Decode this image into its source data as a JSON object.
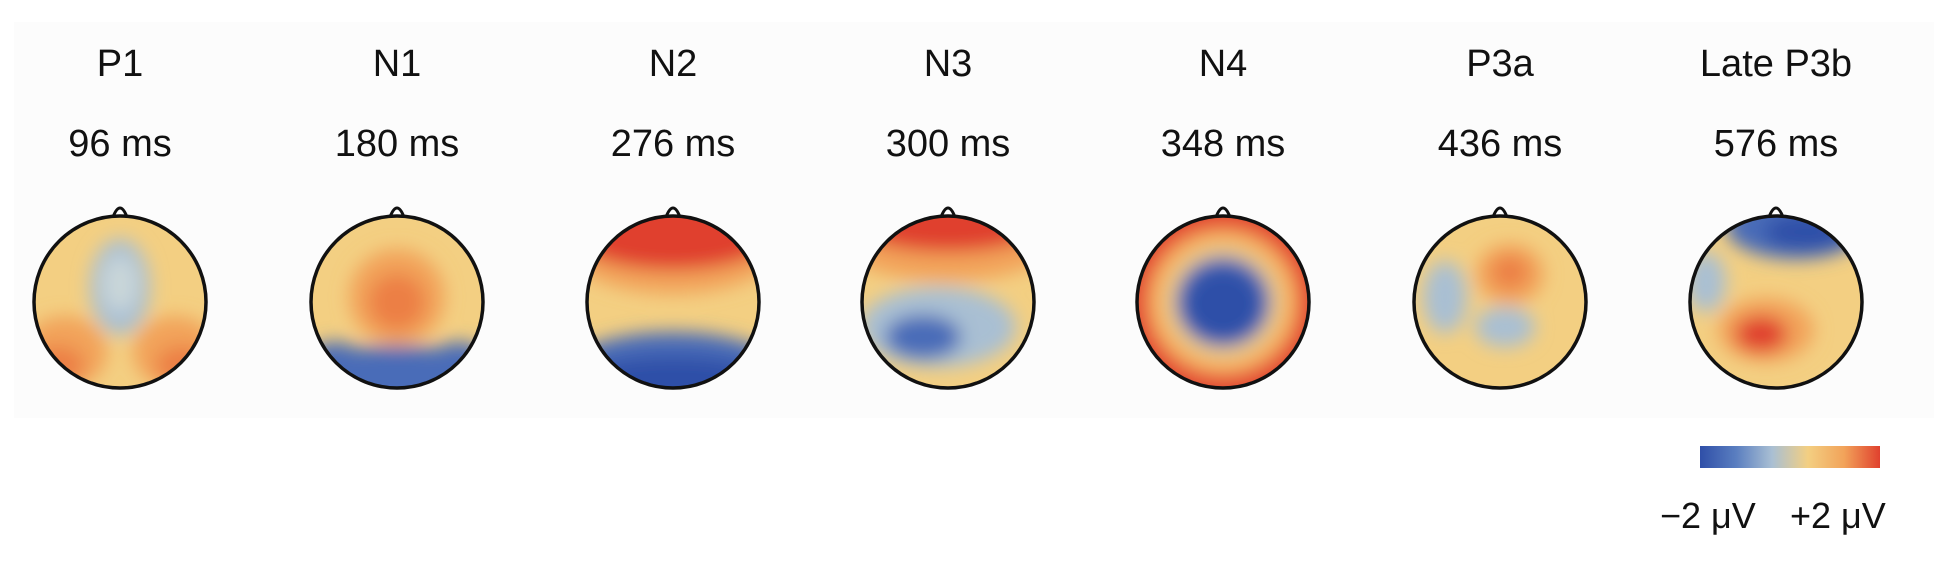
{
  "figure": {
    "components": [
      {
        "id": "p1",
        "name": "P1",
        "latency": "96 ms",
        "pattern": "p1"
      },
      {
        "id": "n1",
        "name": "N1",
        "latency": "180 ms",
        "pattern": "n1"
      },
      {
        "id": "n2",
        "name": "N2",
        "latency": "276 ms",
        "pattern": "n2"
      },
      {
        "id": "n3",
        "name": "N3",
        "latency": "300 ms",
        "pattern": "n3"
      },
      {
        "id": "n4",
        "name": "N4",
        "latency": "348 ms",
        "pattern": "n4"
      },
      {
        "id": "p3a",
        "name": "P3a",
        "latency": "436 ms",
        "pattern": "p3a"
      },
      {
        "id": "p3b",
        "name": "Late P3b",
        "latency": "576 ms",
        "pattern": "p3b"
      }
    ],
    "colorbar": {
      "min_label": "−2 μV",
      "max_label": "+2 μV",
      "colors": [
        "#2f4fa8",
        "#5a7ec0",
        "#a9bfd3",
        "#f3cf82",
        "#f2a35a",
        "#e0412e"
      ]
    }
  }
}
